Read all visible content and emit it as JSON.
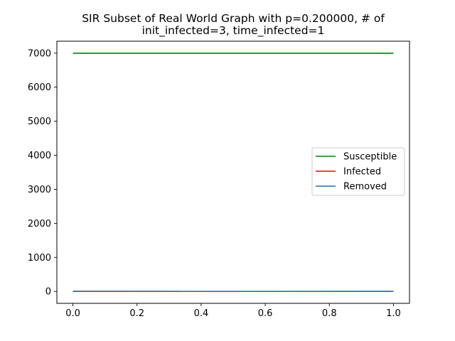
{
  "chart_data": {
    "type": "line",
    "title_lines": [
      "SIR Subset of Real World Graph with p=0.200000, # of",
      "init_infected=3, time_infected=1"
    ],
    "xlabel": "",
    "ylabel": "",
    "x": [
      0.0,
      1.0
    ],
    "xlim": [
      -0.05,
      1.05
    ],
    "ylim": [
      -350,
      7350
    ],
    "xticks": [
      0.0,
      0.2,
      0.4,
      0.6,
      0.8,
      1.0
    ],
    "xtick_labels": [
      "0.0",
      "0.2",
      "0.4",
      "0.6",
      "0.8",
      "1.0"
    ],
    "yticks": [
      0,
      1000,
      2000,
      3000,
      4000,
      5000,
      6000,
      7000
    ],
    "ytick_labels": [
      "0",
      "1000",
      "2000",
      "3000",
      "4000",
      "5000",
      "6000",
      "7000"
    ],
    "grid": false,
    "legend_position": "center-right",
    "series": [
      {
        "name": "Susceptible",
        "color": "#008000",
        "values": [
          6997,
          6997
        ]
      },
      {
        "name": "Infected",
        "color": "#ff0000",
        "values": [
          3,
          0
        ]
      },
      {
        "name": "Removed",
        "color": "#1f77b4",
        "values": [
          0,
          3
        ]
      }
    ]
  }
}
